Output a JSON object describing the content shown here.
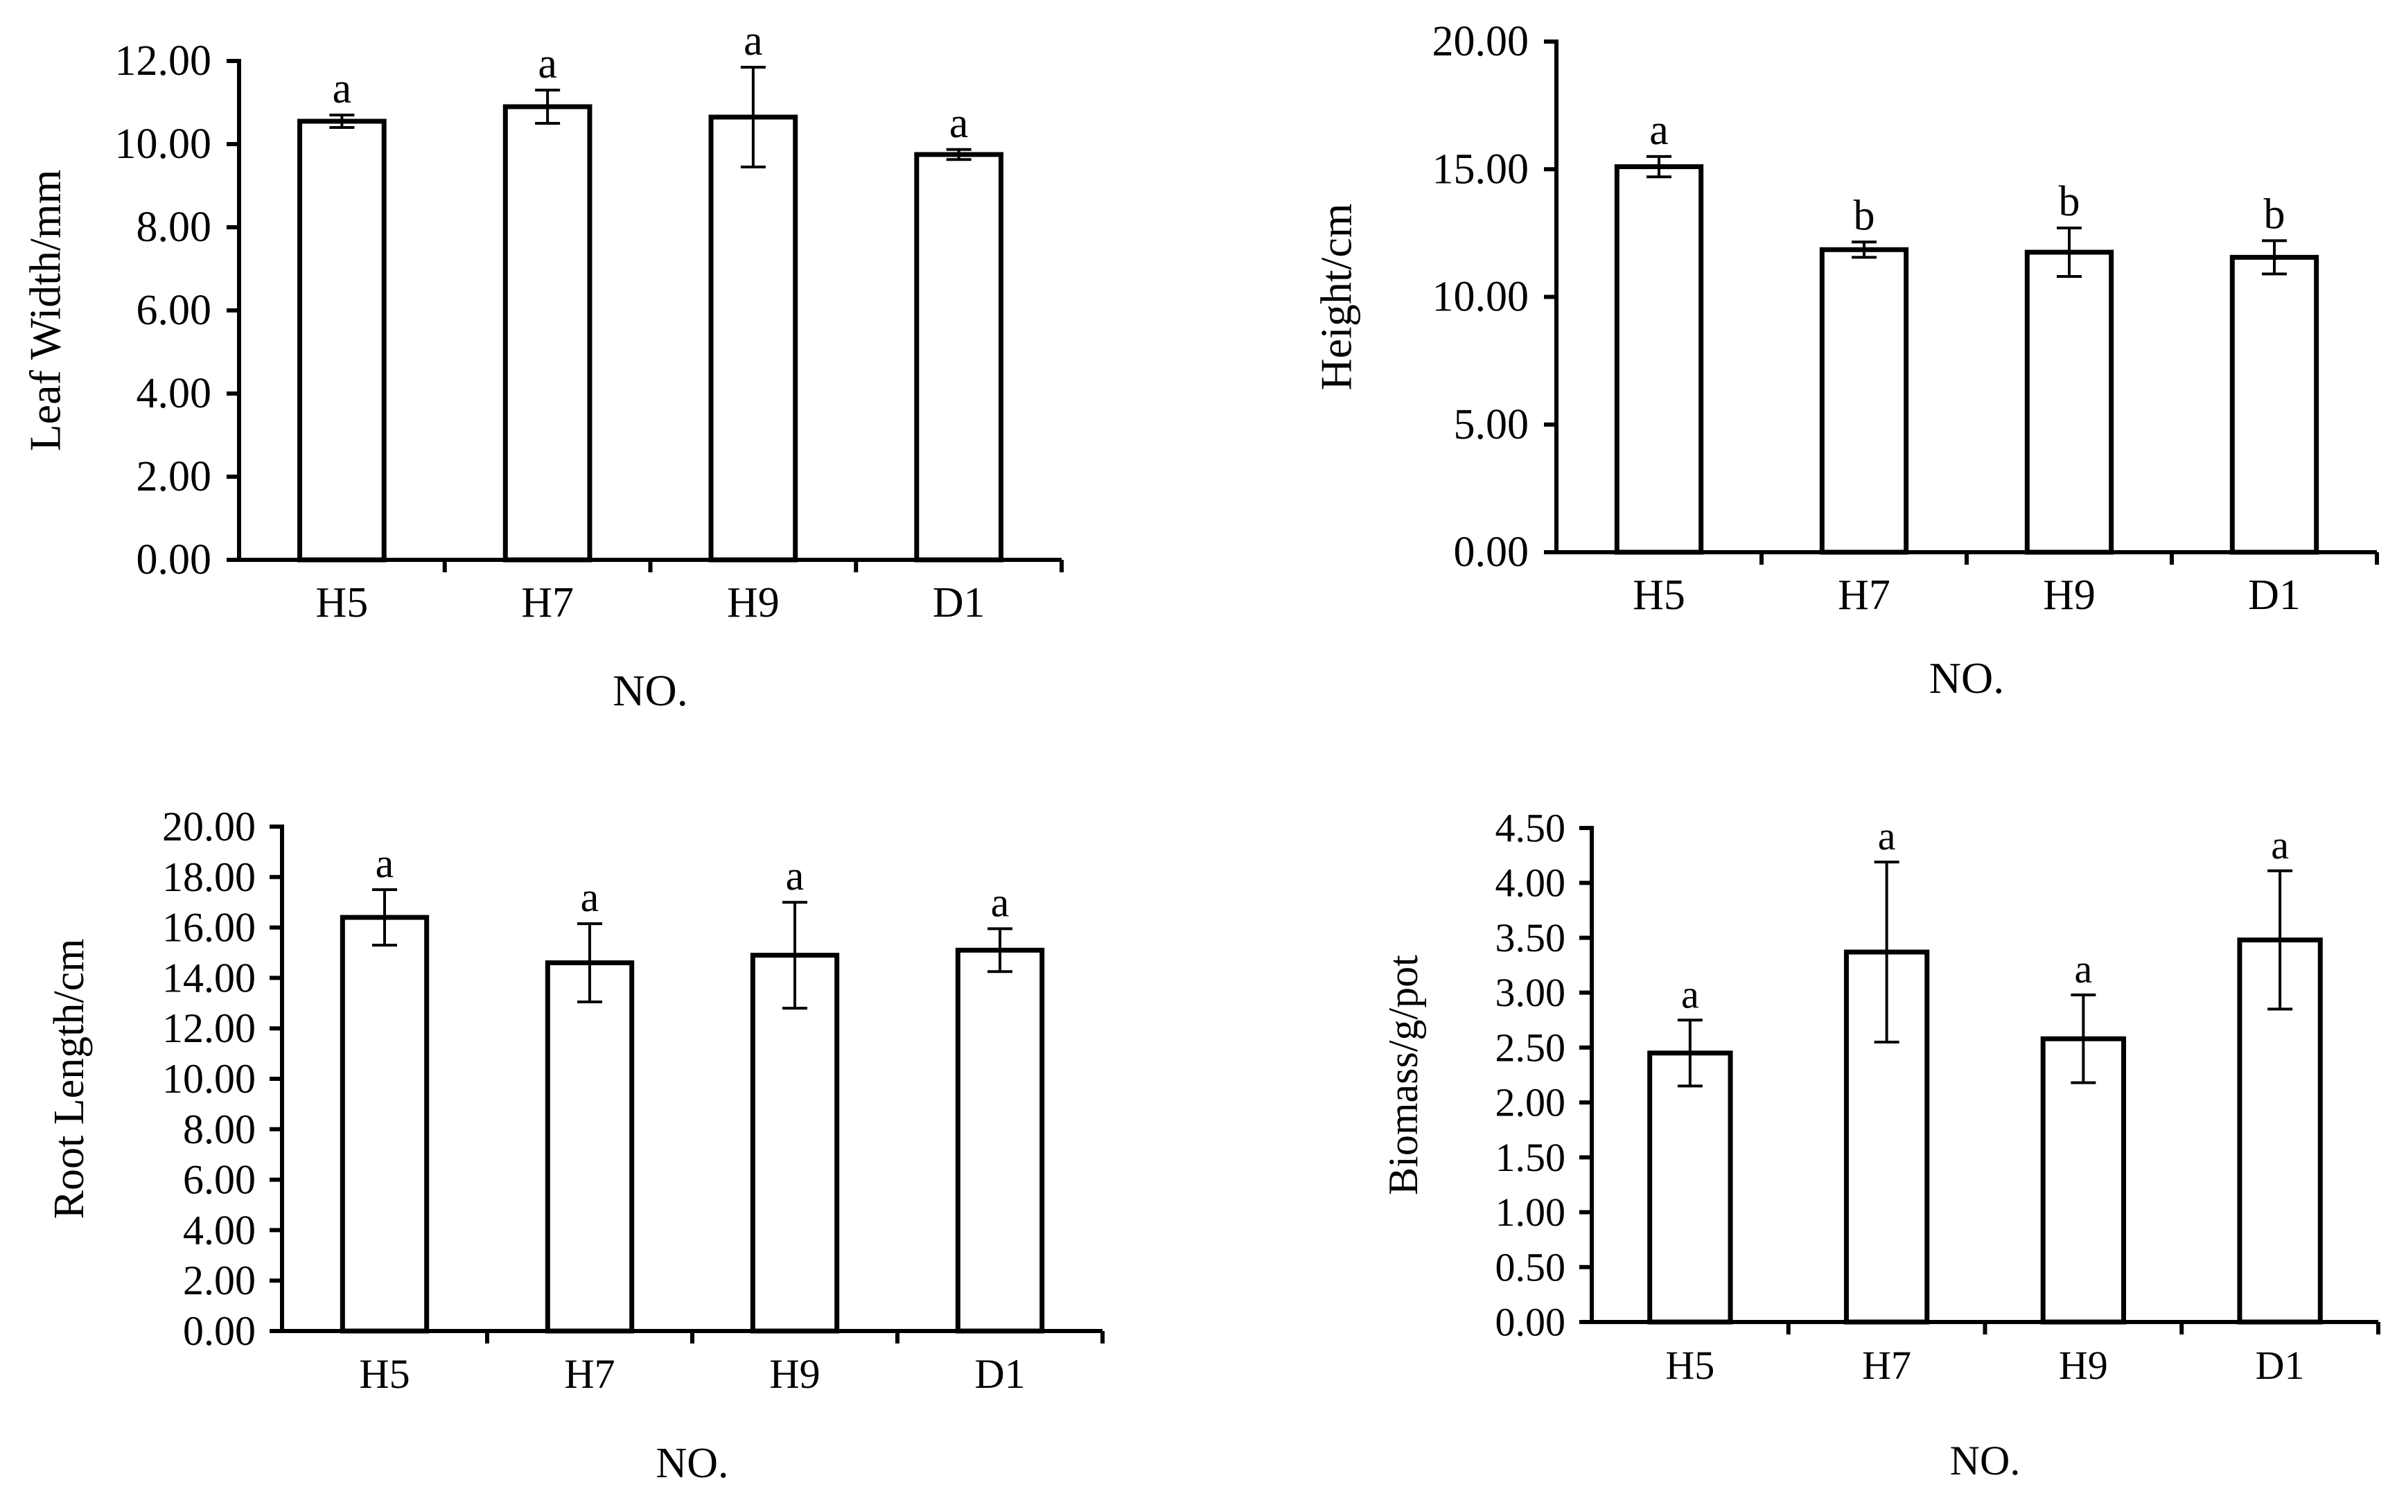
{
  "chart_data": [
    {
      "type": "bar",
      "title": "",
      "xlabel": "NO.",
      "ylabel": "Leaf  Width/mm",
      "categories": [
        "H5",
        "H7",
        "H9",
        "D1"
      ],
      "values": [
        10.55,
        10.9,
        10.65,
        9.75
      ],
      "errors": [
        0.15,
        0.4,
        1.2,
        0.12
      ],
      "significance_letters": [
        "a",
        "a",
        "a",
        "a"
      ],
      "ylim": [
        0,
        12
      ],
      "yticks": [
        "0.00",
        "2.00",
        "4.00",
        "6.00",
        "8.00",
        "10.00",
        "12.00"
      ],
      "grid": false
    },
    {
      "type": "bar",
      "title": "",
      "xlabel": "NO.",
      "ylabel": "Height/cm",
      "categories": [
        "H5",
        "H7",
        "H9",
        "D1"
      ],
      "values": [
        15.1,
        11.85,
        11.75,
        11.55
      ],
      "errors": [
        0.4,
        0.3,
        0.95,
        0.65
      ],
      "significance_letters": [
        "a",
        "b",
        "b",
        "b"
      ],
      "ylim": [
        0,
        20
      ],
      "yticks": [
        "0.00",
        "5.00",
        "10.00",
        "15.00",
        "20.00"
      ],
      "grid": false
    },
    {
      "type": "bar",
      "title": "",
      "xlabel": "NO.",
      "ylabel": "Root Length/cm",
      "categories": [
        "H5",
        "H7",
        "H9",
        "D1"
      ],
      "values": [
        16.4,
        14.6,
        14.9,
        15.1
      ],
      "errors": [
        1.1,
        1.55,
        2.1,
        0.85
      ],
      "significance_letters": [
        "a",
        "a",
        "a",
        "a"
      ],
      "ylim": [
        0,
        20
      ],
      "yticks": [
        "0.00",
        "2.00",
        "4.00",
        "6.00",
        "8.00",
        "10.00",
        "12.00",
        "14.00",
        "16.00",
        "18.00",
        "20.00"
      ],
      "grid": false
    },
    {
      "type": "bar",
      "title": "",
      "xlabel": "NO.",
      "ylabel": "Biomass/g/pot",
      "categories": [
        "H5",
        "H7",
        "H9",
        "D1"
      ],
      "values": [
        2.45,
        3.37,
        2.58,
        3.48
      ],
      "errors": [
        0.3,
        0.82,
        0.4,
        0.63
      ],
      "significance_letters": [
        "a",
        "a",
        "a",
        "a"
      ],
      "ylim": [
        0,
        4.5
      ],
      "yticks": [
        "0.00",
        "0.50",
        "1.00",
        "1.50",
        "2.00",
        "2.50",
        "3.00",
        "3.50",
        "4.00",
        "4.50"
      ],
      "grid": false
    }
  ]
}
